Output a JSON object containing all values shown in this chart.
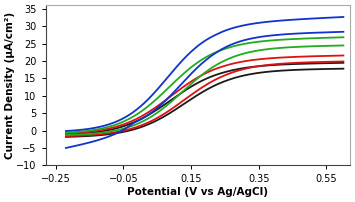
{
  "xlim": [
    -0.28,
    0.62
  ],
  "ylim": [
    -10,
    36
  ],
  "xticks": [
    -0.25,
    -0.05,
    0.15,
    0.35,
    0.55
  ],
  "yticks": [
    -10,
    -5,
    0,
    5,
    10,
    15,
    20,
    25,
    30,
    35
  ],
  "xlabel": "Potential (V vs Ag/AgCl)",
  "ylabel": "Current Density (μA/cm²)",
  "colors": {
    "black": "#1a1a1a",
    "red": "#dd1111",
    "green": "#22aa22",
    "blue": "#1133cc"
  },
  "line_width": 1.3,
  "figsize": [
    3.55,
    2.02
  ],
  "dpi": 100,
  "label_fontsize": 7.5,
  "tick_fontsize": 7
}
